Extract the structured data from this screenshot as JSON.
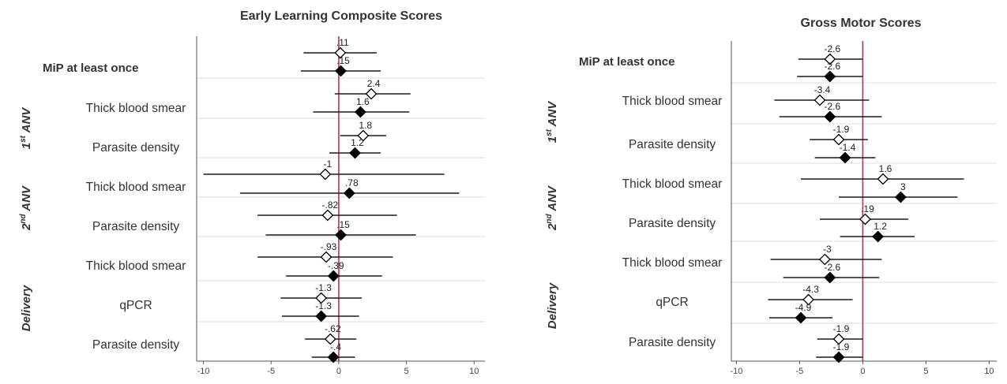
{
  "colors": {
    "zero_line": "#b5345a",
    "marker": "#000000",
    "row_separator": "#e6ecef",
    "axis": "#555555",
    "text": "#333333"
  },
  "group_labels": {
    "first_anv_num": "1",
    "first_anv_sup": "st",
    "first_anv_rest": "ANV",
    "second_anv_num": "2",
    "second_anv_sup": "nd",
    "second_anv_rest": "ANV",
    "delivery": "Delivery"
  },
  "legend": "none",
  "chart_data": [
    {
      "type": "forest",
      "title": "Early Learning Composite Scores",
      "xlim": [
        -10.5,
        10.8
      ],
      "xticks": [
        -10,
        -5,
        0,
        5,
        10
      ],
      "xtick_labels": [
        "-10",
        "-5",
        "0",
        "5",
        "10"
      ],
      "reference_line": 0,
      "grid": "horizontal row separators",
      "rows": [
        {
          "label": "MiP at least once",
          "bold": true,
          "group": "",
          "estimates": [
            {
              "marker": "hollow-diamond",
              "value": 0.11,
              "label": ".11",
              "ci": [
                -2.6,
                2.8
              ]
            },
            {
              "marker": "filled-diamond",
              "value": 0.15,
              "label": ".15",
              "ci": [
                -2.8,
                3.1
              ]
            }
          ]
        },
        {
          "label": "Thick blood smear",
          "bold": false,
          "group": "1st ANV",
          "estimates": [
            {
              "marker": "hollow-diamond",
              "value": 2.4,
              "label": "2.4",
              "ci": [
                -0.3,
                5.3
              ]
            },
            {
              "marker": "filled-diamond",
              "value": 1.6,
              "label": "1.6",
              "ci": [
                -1.9,
                5.2
              ]
            }
          ]
        },
        {
          "label": "Parasite density",
          "bold": false,
          "group": "1st ANV",
          "estimates": [
            {
              "marker": "hollow-diamond",
              "value": 1.8,
              "label": "1.8",
              "ci": [
                0.1,
                3.5
              ]
            },
            {
              "marker": "filled-diamond",
              "value": 1.2,
              "label": "1.2",
              "ci": [
                -0.7,
                3.1
              ]
            }
          ]
        },
        {
          "label": "Thick blood smear",
          "bold": false,
          "group": "2nd ANV",
          "estimates": [
            {
              "marker": "hollow-diamond",
              "value": -1,
              "label": "-1",
              "ci": [
                -10,
                7.8
              ]
            },
            {
              "marker": "filled-diamond",
              "value": 0.78,
              "label": ".78",
              "ci": [
                -7.3,
                8.9
              ]
            }
          ]
        },
        {
          "label": "Parasite density",
          "bold": false,
          "group": "2nd ANV",
          "estimates": [
            {
              "marker": "hollow-diamond",
              "value": -0.82,
              "label": "-.82",
              "ci": [
                -6,
                4.3
              ]
            },
            {
              "marker": "filled-diamond",
              "value": 0.15,
              "label": ".15",
              "ci": [
                -5.4,
                5.7
              ]
            }
          ]
        },
        {
          "label": "Thick blood smear",
          "bold": false,
          "group": "Delivery",
          "estimates": [
            {
              "marker": "hollow-diamond",
              "value": -0.93,
              "label": "-.93",
              "ci": [
                -6,
                4
              ]
            },
            {
              "marker": "filled-diamond",
              "value": -0.39,
              "label": "-.39",
              "ci": [
                -3.9,
                3.2
              ]
            }
          ]
        },
        {
          "label": "qPCR",
          "bold": false,
          "group": "Delivery",
          "estimates": [
            {
              "marker": "hollow-diamond",
              "value": -1.3,
              "label": "-1.3",
              "ci": [
                -4.3,
                1.7
              ]
            },
            {
              "marker": "filled-diamond",
              "value": -1.3,
              "label": "-1.3",
              "ci": [
                -4.2,
                1.5
              ]
            }
          ]
        },
        {
          "label": "Parasite density",
          "bold": false,
          "group": "Delivery",
          "estimates": [
            {
              "marker": "hollow-diamond",
              "value": -0.62,
              "label": "-.62",
              "ci": [
                -2.5,
                1.3
              ]
            },
            {
              "marker": "filled-diamond",
              "value": -0.4,
              "label": "-.4",
              "ci": [
                -2,
                1.2
              ]
            }
          ]
        }
      ]
    },
    {
      "type": "forest",
      "title": "Gross Motor Scores",
      "xlim": [
        -10.4,
        10.6
      ],
      "xticks": [
        -10,
        -5,
        0,
        5,
        10
      ],
      "xtick_labels": [
        "-10",
        "-5",
        "0",
        "5",
        "10"
      ],
      "reference_line": 0,
      "grid": "horizontal row separators",
      "rows": [
        {
          "label": "MiP at least once",
          "bold": true,
          "group": "",
          "estimates": [
            {
              "marker": "hollow-diamond",
              "value": -2.6,
              "label": "-2.6",
              "ci": [
                -5.1,
                0
              ]
            },
            {
              "marker": "filled-diamond",
              "value": -2.6,
              "label": "-2.6",
              "ci": [
                -5.2,
                0
              ]
            }
          ]
        },
        {
          "label": "Thick blood smear",
          "bold": false,
          "group": "1st ANV",
          "estimates": [
            {
              "marker": "hollow-diamond",
              "value": -3.4,
              "label": "-3.4",
              "ci": [
                -7,
                0.5
              ]
            },
            {
              "marker": "filled-diamond",
              "value": -2.6,
              "label": "-2.6",
              "ci": [
                -6.6,
                1.5
              ]
            }
          ]
        },
        {
          "label": "Parasite density",
          "bold": false,
          "group": "1st ANV",
          "estimates": [
            {
              "marker": "hollow-diamond",
              "value": -1.9,
              "label": "-1.9",
              "ci": [
                -4.2,
                0.4
              ]
            },
            {
              "marker": "filled-diamond",
              "value": -1.4,
              "label": "-1.4",
              "ci": [
                -3.8,
                1
              ]
            }
          ]
        },
        {
          "label": "Thick blood smear",
          "bold": false,
          "group": "2nd ANV",
          "estimates": [
            {
              "marker": "hollow-diamond",
              "value": 1.6,
              "label": "1.6",
              "ci": [
                -4.9,
                8
              ]
            },
            {
              "marker": "filled-diamond",
              "value": 3,
              "label": "3",
              "ci": [
                -1.9,
                7.5
              ]
            }
          ]
        },
        {
          "label": "Parasite density",
          "bold": false,
          "group": "2nd ANV",
          "estimates": [
            {
              "marker": "hollow-diamond",
              "value": 0.19,
              "label": ".19",
              "ci": [
                -3.4,
                3.6
              ]
            },
            {
              "marker": "filled-diamond",
              "value": 1.2,
              "label": "1.2",
              "ci": [
                -1.8,
                4.1
              ]
            }
          ]
        },
        {
          "label": "Thick blood smear",
          "bold": false,
          "group": "Delivery",
          "estimates": [
            {
              "marker": "hollow-diamond",
              "value": -3,
              "label": "-3",
              "ci": [
                -7.3,
                1.5
              ]
            },
            {
              "marker": "filled-diamond",
              "value": -2.6,
              "label": "-2.6",
              "ci": [
                -6.3,
                1.3
              ]
            }
          ]
        },
        {
          "label": "qPCR",
          "bold": false,
          "group": "Delivery",
          "estimates": [
            {
              "marker": "hollow-diamond",
              "value": -4.3,
              "label": "-4.3",
              "ci": [
                -7.5,
                -0.8
              ]
            },
            {
              "marker": "filled-diamond",
              "value": -4.9,
              "label": "-4.9",
              "ci": [
                -7.4,
                -2.4
              ]
            }
          ]
        },
        {
          "label": "Parasite density",
          "bold": false,
          "group": "Delivery",
          "estimates": [
            {
              "marker": "hollow-diamond",
              "value": -1.9,
              "label": "-1.9",
              "ci": [
                -3.6,
                0
              ]
            },
            {
              "marker": "filled-diamond",
              "value": -1.9,
              "label": "-1.9",
              "ci": [
                -3.7,
                0
              ]
            }
          ]
        }
      ]
    }
  ]
}
